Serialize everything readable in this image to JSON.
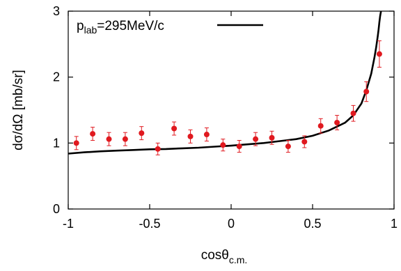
{
  "chart_data": {
    "type": "scatter",
    "xlabel": {
      "main": "cosθ",
      "sub": "c.m."
    },
    "ylabel": "dσ/dΩ [mb/sr]",
    "xlim": [
      -1,
      1
    ],
    "ylim": [
      0,
      3
    ],
    "x_ticks": [
      -1,
      -0.5,
      0,
      0.5,
      1
    ],
    "x_tick_labels": [
      "-1",
      "-0.5",
      "0",
      "0.5",
      "1"
    ],
    "y_ticks": [
      0,
      1,
      2,
      3
    ],
    "y_tick_labels": [
      "0",
      "1",
      "2",
      "3"
    ],
    "grid": false,
    "legend": {
      "placement": "top-left",
      "prefix": "p",
      "sub": "lab",
      "suffix": "=295MeV/c"
    },
    "colors": {
      "points": "#e0191f",
      "curve": "#000000",
      "axes": "#000000"
    },
    "series": [
      {
        "kind": "points-with-errorbars",
        "x": [
          -0.95,
          -0.85,
          -0.75,
          -0.65,
          -0.55,
          -0.45,
          -0.35,
          -0.25,
          -0.15,
          -0.05,
          0.05,
          0.15,
          0.25,
          0.35,
          0.45,
          0.55,
          0.65,
          0.75,
          0.83,
          0.91
        ],
        "y": [
          1.0,
          1.14,
          1.06,
          1.06,
          1.15,
          0.91,
          1.22,
          1.1,
          1.13,
          0.97,
          0.95,
          1.06,
          1.08,
          0.95,
          1.02,
          1.26,
          1.31,
          1.45,
          1.78,
          2.35
        ],
        "err": [
          0.1,
          0.1,
          0.1,
          0.1,
          0.1,
          0.09,
          0.1,
          0.1,
          0.1,
          0.09,
          0.09,
          0.1,
          0.1,
          0.09,
          0.09,
          0.11,
          0.11,
          0.12,
          0.15,
          0.2
        ]
      },
      {
        "kind": "curve",
        "x": [
          -1,
          -0.9,
          -0.8,
          -0.7,
          -0.6,
          -0.5,
          -0.4,
          -0.3,
          -0.2,
          -0.1,
          0,
          0.1,
          0.2,
          0.3,
          0.4,
          0.5,
          0.6,
          0.7,
          0.75,
          0.8,
          0.83,
          0.86,
          0.88,
          0.89,
          0.9,
          0.905,
          0.91,
          0.915,
          0.92
        ],
        "y": [
          0.84,
          0.86,
          0.875,
          0.885,
          0.895,
          0.905,
          0.91,
          0.92,
          0.93,
          0.945,
          0.96,
          0.98,
          1.0,
          1.03,
          1.06,
          1.11,
          1.19,
          1.31,
          1.42,
          1.6,
          1.8,
          2.05,
          2.3,
          2.45,
          2.62,
          2.72,
          2.83,
          2.93,
          3.0
        ]
      }
    ]
  }
}
